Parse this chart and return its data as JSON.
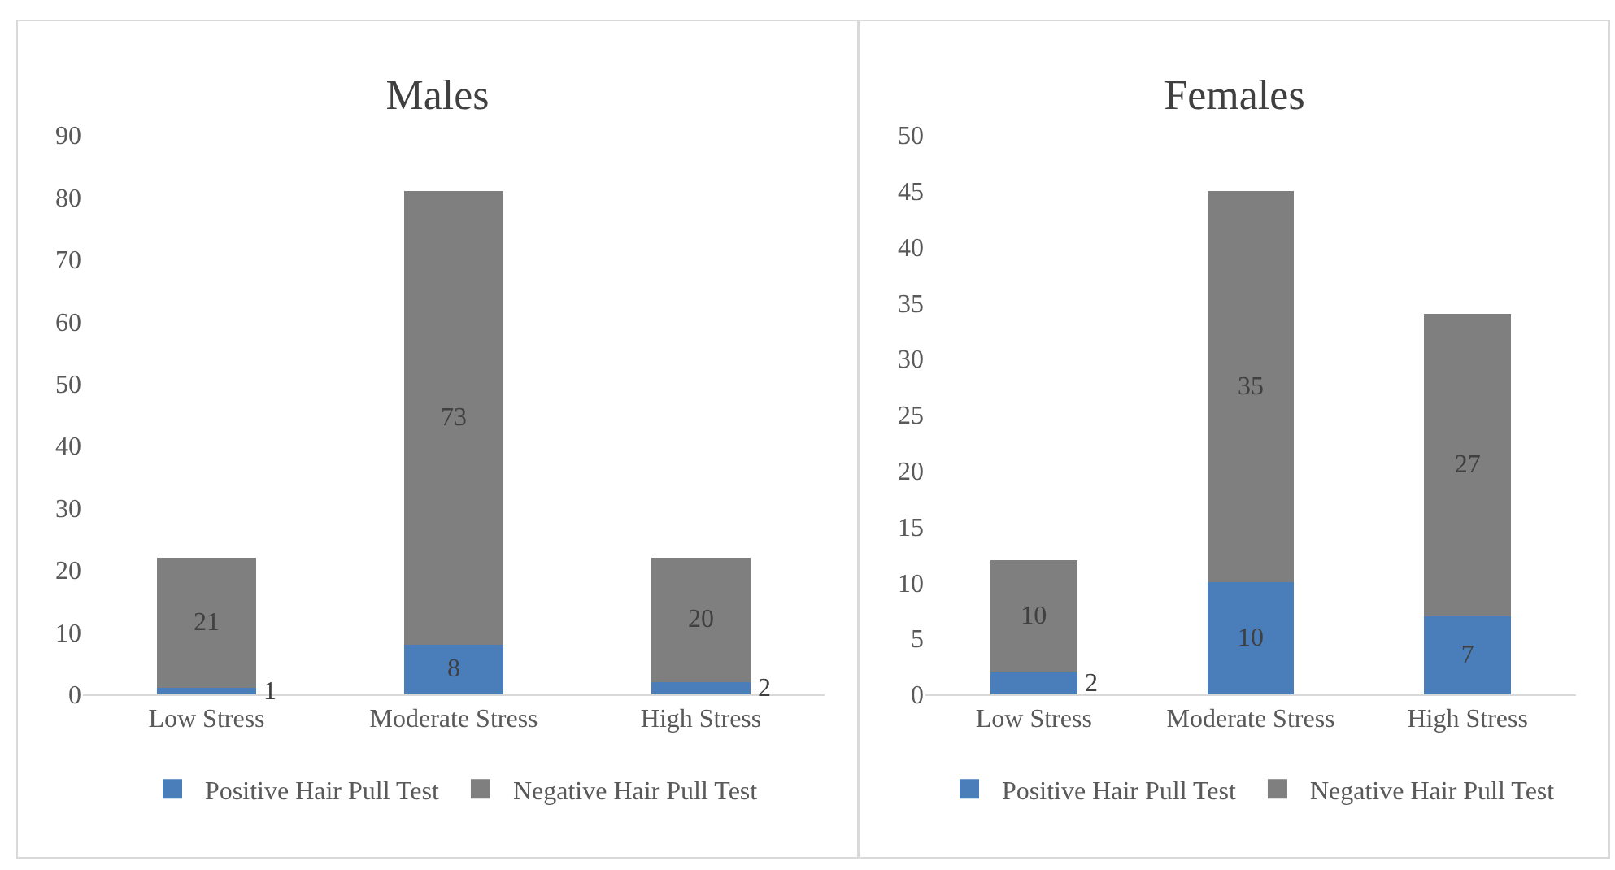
{
  "chart_data": [
    {
      "type": "bar",
      "title": "Males",
      "categories": [
        "Low Stress",
        "Moderate Stress",
        "High Stress"
      ],
      "stacked": true,
      "series": [
        {
          "name": "Positive Hair Pull Test",
          "color": "#4a7ebb",
          "values": [
            1,
            8,
            2
          ]
        },
        {
          "name": "Negative Hair Pull Test",
          "color": "#7f7f7f",
          "values": [
            21,
            73,
            20
          ]
        }
      ],
      "ylim": [
        0,
        90
      ],
      "yticks": [
        0,
        10,
        20,
        30,
        40,
        50,
        60,
        70,
        80,
        90
      ],
      "grid": false,
      "legend": "bottom",
      "data_labels": true
    },
    {
      "type": "bar",
      "title": "Females",
      "categories": [
        "Low Stress",
        "Moderate Stress",
        "High Stress"
      ],
      "stacked": true,
      "series": [
        {
          "name": "Positive Hair Pull Test",
          "color": "#4a7ebb",
          "values": [
            2,
            10,
            7
          ]
        },
        {
          "name": "Negative Hair Pull Test",
          "color": "#7f7f7f",
          "values": [
            10,
            35,
            27
          ]
        }
      ],
      "ylim": [
        0,
        50
      ],
      "yticks": [
        0,
        5,
        10,
        15,
        20,
        25,
        30,
        35,
        40,
        45,
        50
      ],
      "grid": false,
      "legend": "bottom",
      "data_labels": true
    }
  ]
}
